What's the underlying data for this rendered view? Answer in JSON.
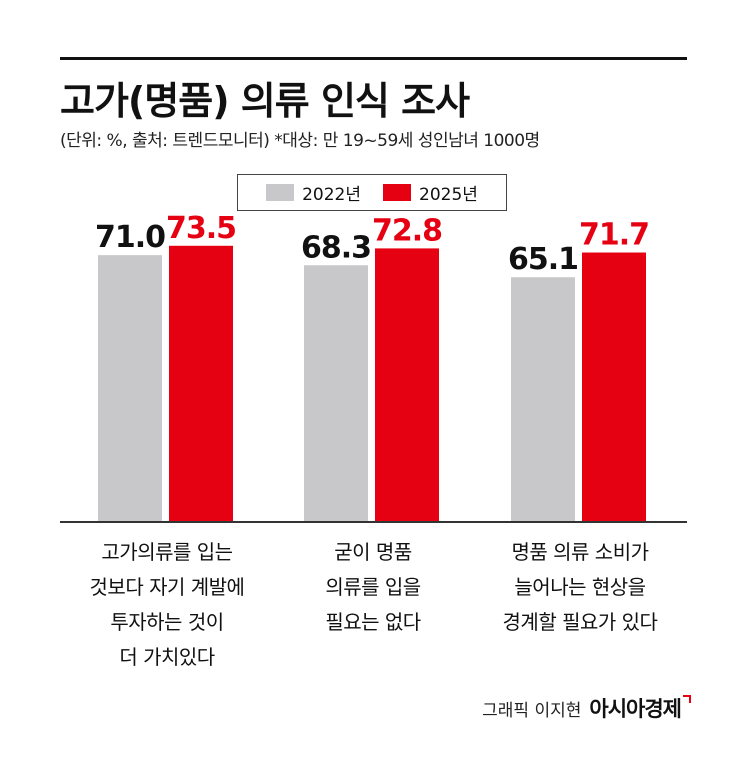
{
  "title": "고가(명품) 의류 인식 조사",
  "subtitle": "(단위: %, 출처: 트렌드모니터) *대상: 만 19~59세 성인남녀 1000명",
  "credit": {
    "text": "그래픽 이지현",
    "logo": "아시아경제"
  },
  "colors": {
    "series_2022": "#c8c8ca",
    "series_2025": "#e50012",
    "label_2022": "#111111",
    "label_2025": "#e50012"
  },
  "chart_data": {
    "type": "bar",
    "categories": [
      [
        "고가의류를 입는",
        "것보다 자기 계발에",
        "투자하는 것이",
        "더 가치있다"
      ],
      [
        "굳이 명품",
        "의류를 입을",
        "필요는 없다"
      ],
      [
        "명품 의류 소비가",
        "늘어나는 현상을",
        "경계할 필요가 있다"
      ]
    ],
    "series": [
      {
        "name": "2022년",
        "values": [
          71.0,
          68.3,
          65.1
        ]
      },
      {
        "name": "2025년",
        "values": [
          73.5,
          72.8,
          71.7
        ]
      }
    ],
    "ylim": [
      0,
      90
    ],
    "legend": "top-center",
    "grid": false
  }
}
